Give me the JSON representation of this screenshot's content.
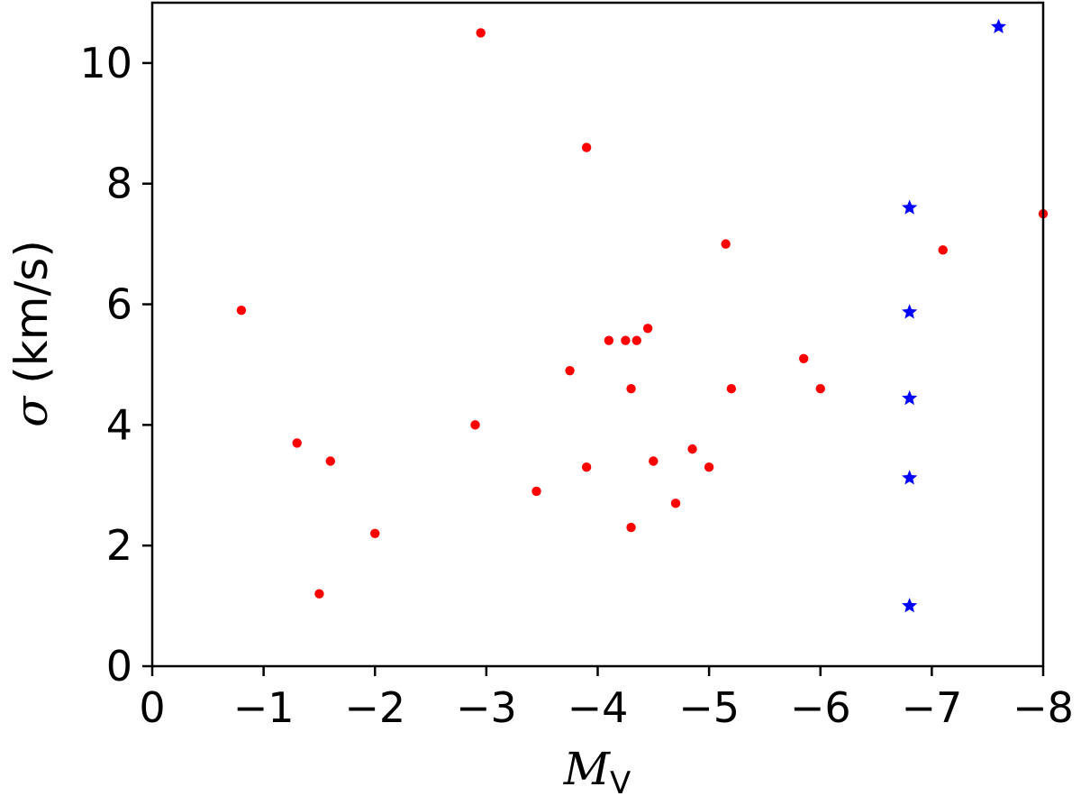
{
  "chart_data": {
    "type": "scatter",
    "xlabel_main": "M",
    "xlabel_sub": "V",
    "ylabel_symbol": "σ",
    "ylabel_unit": "(km/s)",
    "xlim": [
      0,
      -8
    ],
    "ylim": [
      0,
      11
    ],
    "x_ticks": [
      0,
      -1,
      -2,
      -3,
      -4,
      -5,
      -6,
      -7,
      -8
    ],
    "x_tick_labels": [
      "0",
      "−1",
      "−2",
      "−3",
      "−4",
      "−5",
      "−6",
      "−7",
      "−8"
    ],
    "y_ticks": [
      0,
      2,
      4,
      6,
      8,
      10
    ],
    "y_tick_labels": [
      "0",
      "2",
      "4",
      "6",
      "8",
      "10"
    ],
    "grid": false,
    "series": [
      {
        "marker": "circle",
        "color": "#ff0000",
        "points": [
          {
            "x": -0.8,
            "y": 5.9
          },
          {
            "x": -1.3,
            "y": 3.7
          },
          {
            "x": -1.5,
            "y": 1.2
          },
          {
            "x": -1.6,
            "y": 3.4
          },
          {
            "x": -2.0,
            "y": 2.2
          },
          {
            "x": -2.9,
            "y": 4.0
          },
          {
            "x": -2.95,
            "y": 10.5
          },
          {
            "x": -3.45,
            "y": 2.9
          },
          {
            "x": -3.75,
            "y": 4.9
          },
          {
            "x": -3.9,
            "y": 3.3
          },
          {
            "x": -3.9,
            "y": 8.6
          },
          {
            "x": -4.1,
            "y": 5.4
          },
          {
            "x": -4.25,
            "y": 5.4
          },
          {
            "x": -4.3,
            "y": 4.6
          },
          {
            "x": -4.3,
            "y": 2.3
          },
          {
            "x": -4.35,
            "y": 5.4
          },
          {
            "x": -4.45,
            "y": 5.6
          },
          {
            "x": -4.5,
            "y": 3.4
          },
          {
            "x": -4.7,
            "y": 2.7
          },
          {
            "x": -4.85,
            "y": 3.6
          },
          {
            "x": -5.0,
            "y": 3.3
          },
          {
            "x": -5.15,
            "y": 7.0
          },
          {
            "x": -5.2,
            "y": 4.6
          },
          {
            "x": -5.85,
            "y": 5.1
          },
          {
            "x": -6.0,
            "y": 4.6
          },
          {
            "x": -7.1,
            "y": 6.9
          },
          {
            "x": -8.0,
            "y": 7.5
          }
        ]
      },
      {
        "marker": "star",
        "color": "#0000ff",
        "points": [
          {
            "x": -6.8,
            "y": 7.6
          },
          {
            "x": -6.8,
            "y": 5.87
          },
          {
            "x": -6.8,
            "y": 4.44
          },
          {
            "x": -6.8,
            "y": 3.12
          },
          {
            "x": -6.8,
            "y": 1.0
          },
          {
            "x": -7.6,
            "y": 10.6
          }
        ]
      }
    ]
  }
}
